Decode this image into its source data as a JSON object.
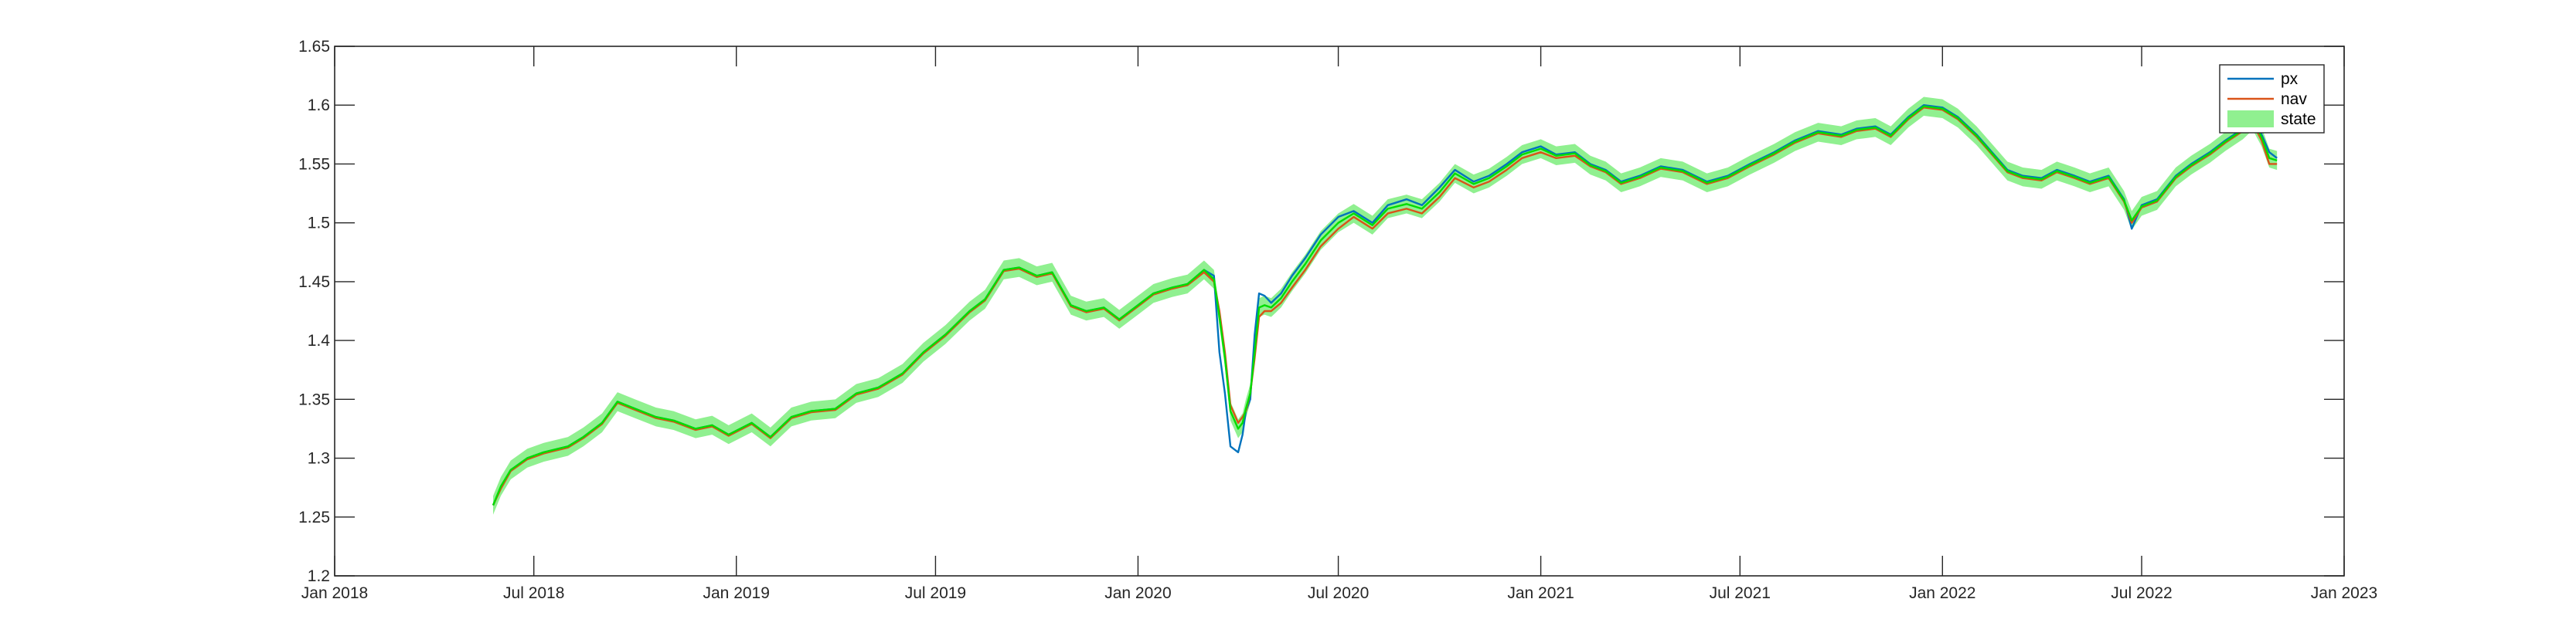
{
  "chart_data": {
    "type": "line",
    "title": "",
    "xlabel": "",
    "ylabel": "",
    "xlim": [
      "2018-01-01",
      "2023-01-01"
    ],
    "ylim": [
      1.2,
      1.65
    ],
    "y_ticks": [
      1.2,
      1.25,
      1.3,
      1.35,
      1.4,
      1.45,
      1.5,
      1.55,
      1.6,
      1.65
    ],
    "y_tick_labels": [
      "1.2",
      "1.25",
      "1.3",
      "1.35",
      "1.4",
      "1.45",
      "1.5",
      "1.55",
      "1.6",
      "1.65"
    ],
    "x_ticks": [
      "2018-01-01",
      "2018-07-01",
      "2019-01-01",
      "2019-07-01",
      "2020-01-01",
      "2020-07-01",
      "2021-01-01",
      "2021-07-01",
      "2022-01-01",
      "2022-07-01",
      "2023-01-01"
    ],
    "x_tick_labels": [
      "Jan 2018",
      "Jul 2018",
      "Jan 2019",
      "Jul 2019",
      "Jan 2020",
      "Jul 2020",
      "Jan 2021",
      "Jul 2021",
      "Jan 2022",
      "Jul 2022",
      "Jan 2023"
    ],
    "grid": false,
    "legend_position": "top-right",
    "state_band_halfwidth": 0.008,
    "series": [
      {
        "name": "px",
        "color": "#0072BD",
        "x": [
          "2018-05-25",
          "2018-06-01",
          "2018-06-10",
          "2018-06-25",
          "2018-07-10",
          "2018-08-01",
          "2018-08-15",
          "2018-09-01",
          "2018-09-15",
          "2018-10-01",
          "2018-10-20",
          "2018-11-05",
          "2018-11-25",
          "2018-12-10",
          "2018-12-25",
          "2019-01-15",
          "2019-02-01",
          "2019-02-20",
          "2019-03-10",
          "2019-04-01",
          "2019-04-20",
          "2019-05-10",
          "2019-06-01",
          "2019-06-20",
          "2019-07-10",
          "2019-08-01",
          "2019-08-15",
          "2019-09-01",
          "2019-09-15",
          "2019-10-01",
          "2019-10-15",
          "2019-11-01",
          "2019-11-15",
          "2019-12-01",
          "2019-12-15",
          "2020-01-01",
          "2020-01-15",
          "2020-02-01",
          "2020-02-15",
          "2020-03-01",
          "2020-03-10",
          "2020-03-15",
          "2020-03-20",
          "2020-03-25",
          "2020-04-01",
          "2020-04-05",
          "2020-04-08",
          "2020-04-12",
          "2020-04-16",
          "2020-04-20",
          "2020-04-25",
          "2020-05-01",
          "2020-05-10",
          "2020-05-20",
          "2020-06-01",
          "2020-06-15",
          "2020-07-01",
          "2020-07-15",
          "2020-08-01",
          "2020-08-15",
          "2020-09-01",
          "2020-09-15",
          "2020-10-01",
          "2020-10-15",
          "2020-11-01",
          "2020-11-15",
          "2020-12-01",
          "2020-12-15",
          "2021-01-01",
          "2021-01-15",
          "2021-02-01",
          "2021-02-15",
          "2021-03-01",
          "2021-03-15",
          "2021-04-01",
          "2021-04-20",
          "2021-05-10",
          "2021-06-01",
          "2021-06-20",
          "2021-07-10",
          "2021-08-01",
          "2021-08-20",
          "2021-09-10",
          "2021-10-01",
          "2021-10-15",
          "2021-11-01",
          "2021-11-15",
          "2021-12-01",
          "2021-12-15",
          "2022-01-01",
          "2022-01-15",
          "2022-02-01",
          "2022-02-15",
          "2022-03-01",
          "2022-03-15",
          "2022-04-01",
          "2022-04-15",
          "2022-05-01",
          "2022-05-15",
          "2022-06-01",
          "2022-06-15",
          "2022-06-22",
          "2022-07-01",
          "2022-07-15",
          "2022-08-01",
          "2022-08-15",
          "2022-09-01",
          "2022-09-15",
          "2022-10-01",
          "2022-10-10",
          "2022-10-18",
          "2022-10-25",
          "2022-11-01"
        ],
        "y": [
          1.26,
          1.275,
          1.29,
          1.3,
          1.305,
          1.31,
          1.318,
          1.33,
          1.348,
          1.342,
          1.335,
          1.332,
          1.325,
          1.328,
          1.32,
          1.33,
          1.318,
          1.335,
          1.34,
          1.342,
          1.355,
          1.36,
          1.372,
          1.39,
          1.405,
          1.425,
          1.435,
          1.46,
          1.462,
          1.455,
          1.458,
          1.43,
          1.425,
          1.428,
          1.418,
          1.43,
          1.44,
          1.445,
          1.448,
          1.46,
          1.455,
          1.39,
          1.355,
          1.31,
          1.305,
          1.32,
          1.34,
          1.35,
          1.405,
          1.44,
          1.438,
          1.432,
          1.44,
          1.455,
          1.47,
          1.49,
          1.505,
          1.51,
          1.5,
          1.515,
          1.52,
          1.515,
          1.53,
          1.545,
          1.535,
          1.54,
          1.55,
          1.56,
          1.565,
          1.558,
          1.56,
          1.55,
          1.545,
          1.535,
          1.54,
          1.548,
          1.545,
          1.535,
          1.54,
          1.55,
          1.56,
          1.57,
          1.578,
          1.575,
          1.58,
          1.582,
          1.575,
          1.59,
          1.6,
          1.598,
          1.59,
          1.575,
          1.56,
          1.545,
          1.54,
          1.538,
          1.545,
          1.54,
          1.535,
          1.54,
          1.52,
          1.495,
          1.515,
          1.52,
          1.54,
          1.55,
          1.56,
          1.57,
          1.58,
          1.59,
          1.575,
          1.56,
          1.555
        ]
      },
      {
        "name": "nav",
        "color": "#D95319",
        "x": [
          "2018-05-25",
          "2018-06-01",
          "2018-06-10",
          "2018-06-25",
          "2018-07-10",
          "2018-08-01",
          "2018-08-15",
          "2018-09-01",
          "2018-09-15",
          "2018-10-01",
          "2018-10-20",
          "2018-11-05",
          "2018-11-25",
          "2018-12-10",
          "2018-12-25",
          "2019-01-15",
          "2019-02-01",
          "2019-02-20",
          "2019-03-10",
          "2019-04-01",
          "2019-04-20",
          "2019-05-10",
          "2019-06-01",
          "2019-06-20",
          "2019-07-10",
          "2019-08-01",
          "2019-08-15",
          "2019-09-01",
          "2019-09-15",
          "2019-10-01",
          "2019-10-15",
          "2019-11-01",
          "2019-11-15",
          "2019-12-01",
          "2019-12-15",
          "2020-01-01",
          "2020-01-15",
          "2020-02-01",
          "2020-02-15",
          "2020-03-01",
          "2020-03-10",
          "2020-03-15",
          "2020-03-20",
          "2020-03-25",
          "2020-04-01",
          "2020-04-05",
          "2020-04-08",
          "2020-04-12",
          "2020-04-16",
          "2020-04-20",
          "2020-04-25",
          "2020-05-01",
          "2020-05-10",
          "2020-05-20",
          "2020-06-01",
          "2020-06-15",
          "2020-07-01",
          "2020-07-15",
          "2020-08-01",
          "2020-08-15",
          "2020-09-01",
          "2020-09-15",
          "2020-10-01",
          "2020-10-15",
          "2020-11-01",
          "2020-11-15",
          "2020-12-01",
          "2020-12-15",
          "2021-01-01",
          "2021-01-15",
          "2021-02-01",
          "2021-02-15",
          "2021-03-01",
          "2021-03-15",
          "2021-04-01",
          "2021-04-20",
          "2021-05-10",
          "2021-06-01",
          "2021-06-20",
          "2021-07-10",
          "2021-08-01",
          "2021-08-20",
          "2021-09-10",
          "2021-10-01",
          "2021-10-15",
          "2021-11-01",
          "2021-11-15",
          "2021-12-01",
          "2021-12-15",
          "2022-01-01",
          "2022-01-15",
          "2022-02-01",
          "2022-02-15",
          "2022-03-01",
          "2022-03-15",
          "2022-04-01",
          "2022-04-15",
          "2022-05-01",
          "2022-05-15",
          "2022-06-01",
          "2022-06-15",
          "2022-06-22",
          "2022-07-01",
          "2022-07-15",
          "2022-08-01",
          "2022-08-15",
          "2022-09-01",
          "2022-09-15",
          "2022-10-01",
          "2022-10-10",
          "2022-10-18",
          "2022-10-25",
          "2022-11-01"
        ],
        "y": [
          1.26,
          1.274,
          1.289,
          1.299,
          1.304,
          1.309,
          1.317,
          1.329,
          1.347,
          1.341,
          1.334,
          1.331,
          1.324,
          1.327,
          1.319,
          1.329,
          1.317,
          1.334,
          1.339,
          1.341,
          1.354,
          1.359,
          1.371,
          1.389,
          1.404,
          1.424,
          1.434,
          1.459,
          1.461,
          1.454,
          1.457,
          1.429,
          1.424,
          1.427,
          1.417,
          1.429,
          1.439,
          1.444,
          1.447,
          1.458,
          1.45,
          1.425,
          1.39,
          1.345,
          1.33,
          1.335,
          1.34,
          1.355,
          1.385,
          1.42,
          1.425,
          1.425,
          1.432,
          1.445,
          1.46,
          1.48,
          1.495,
          1.505,
          1.495,
          1.508,
          1.512,
          1.508,
          1.522,
          1.538,
          1.53,
          1.535,
          1.545,
          1.555,
          1.56,
          1.555,
          1.557,
          1.548,
          1.543,
          1.533,
          1.538,
          1.546,
          1.543,
          1.533,
          1.538,
          1.548,
          1.558,
          1.568,
          1.576,
          1.573,
          1.578,
          1.58,
          1.573,
          1.588,
          1.598,
          1.596,
          1.588,
          1.573,
          1.558,
          1.543,
          1.538,
          1.536,
          1.543,
          1.538,
          1.533,
          1.538,
          1.518,
          1.5,
          1.513,
          1.518,
          1.538,
          1.548,
          1.558,
          1.568,
          1.578,
          1.585,
          1.57,
          1.55,
          1.55
        ]
      },
      {
        "name": "state",
        "color": "#00DD00",
        "band_color": "#90F090",
        "x": [
          "2018-05-25",
          "2018-06-01",
          "2018-06-10",
          "2018-06-25",
          "2018-07-10",
          "2018-08-01",
          "2018-08-15",
          "2018-09-01",
          "2018-09-15",
          "2018-10-01",
          "2018-10-20",
          "2018-11-05",
          "2018-11-25",
          "2018-12-10",
          "2018-12-25",
          "2019-01-15",
          "2019-02-01",
          "2019-02-20",
          "2019-03-10",
          "2019-04-01",
          "2019-04-20",
          "2019-05-10",
          "2019-06-01",
          "2019-06-20",
          "2019-07-10",
          "2019-08-01",
          "2019-08-15",
          "2019-09-01",
          "2019-09-15",
          "2019-10-01",
          "2019-10-15",
          "2019-11-01",
          "2019-11-15",
          "2019-12-01",
          "2019-12-15",
          "2020-01-01",
          "2020-01-15",
          "2020-02-01",
          "2020-02-15",
          "2020-03-01",
          "2020-03-10",
          "2020-03-15",
          "2020-03-20",
          "2020-03-25",
          "2020-04-01",
          "2020-04-05",
          "2020-04-08",
          "2020-04-12",
          "2020-04-16",
          "2020-04-20",
          "2020-04-25",
          "2020-05-01",
          "2020-05-10",
          "2020-05-20",
          "2020-06-01",
          "2020-06-15",
          "2020-07-01",
          "2020-07-15",
          "2020-08-01",
          "2020-08-15",
          "2020-09-01",
          "2020-09-15",
          "2020-10-01",
          "2020-10-15",
          "2020-11-01",
          "2020-11-15",
          "2020-12-01",
          "2020-12-15",
          "2021-01-01",
          "2021-01-15",
          "2021-02-01",
          "2021-02-15",
          "2021-03-01",
          "2021-03-15",
          "2021-04-01",
          "2021-04-20",
          "2021-05-10",
          "2021-06-01",
          "2021-06-20",
          "2021-07-10",
          "2021-08-01",
          "2021-08-20",
          "2021-09-10",
          "2021-10-01",
          "2021-10-15",
          "2021-11-01",
          "2021-11-15",
          "2021-12-01",
          "2021-12-15",
          "2022-01-01",
          "2022-01-15",
          "2022-02-01",
          "2022-02-15",
          "2022-03-01",
          "2022-03-15",
          "2022-04-01",
          "2022-04-15",
          "2022-05-01",
          "2022-05-15",
          "2022-06-01",
          "2022-06-15",
          "2022-06-22",
          "2022-07-01",
          "2022-07-15",
          "2022-08-01",
          "2022-08-15",
          "2022-09-01",
          "2022-09-15",
          "2022-10-01",
          "2022-10-10",
          "2022-10-18",
          "2022-10-25",
          "2022-11-01"
        ],
        "y": [
          1.26,
          1.276,
          1.29,
          1.3,
          1.305,
          1.31,
          1.318,
          1.33,
          1.348,
          1.342,
          1.335,
          1.332,
          1.325,
          1.328,
          1.32,
          1.33,
          1.318,
          1.335,
          1.34,
          1.342,
          1.355,
          1.36,
          1.372,
          1.39,
          1.405,
          1.425,
          1.435,
          1.46,
          1.462,
          1.455,
          1.458,
          1.43,
          1.425,
          1.428,
          1.418,
          1.43,
          1.44,
          1.445,
          1.448,
          1.46,
          1.452,
          1.42,
          1.385,
          1.34,
          1.325,
          1.33,
          1.342,
          1.355,
          1.39,
          1.428,
          1.43,
          1.428,
          1.436,
          1.45,
          1.465,
          1.485,
          1.5,
          1.508,
          1.498,
          1.512,
          1.516,
          1.512,
          1.526,
          1.542,
          1.533,
          1.538,
          1.548,
          1.558,
          1.563,
          1.557,
          1.559,
          1.549,
          1.544,
          1.534,
          1.539,
          1.547,
          1.544,
          1.534,
          1.539,
          1.549,
          1.559,
          1.569,
          1.577,
          1.574,
          1.579,
          1.581,
          1.574,
          1.589,
          1.599,
          1.597,
          1.589,
          1.574,
          1.559,
          1.544,
          1.539,
          1.537,
          1.544,
          1.539,
          1.534,
          1.539,
          1.519,
          1.502,
          1.514,
          1.519,
          1.539,
          1.549,
          1.559,
          1.569,
          1.579,
          1.587,
          1.573,
          1.555,
          1.553
        ]
      }
    ]
  }
}
